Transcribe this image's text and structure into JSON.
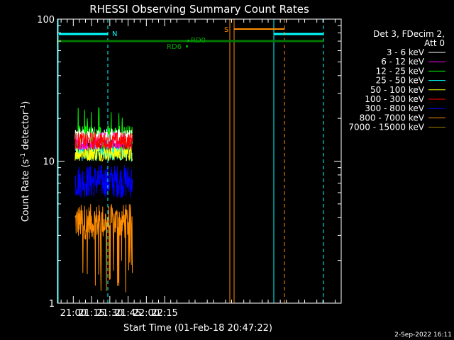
{
  "chart_data": {
    "type": "line",
    "title": "RHESSI Observing Summary Count Rates",
    "xlabel": "Start Time (01-Feb-18 20:47:22)",
    "ylabel_main": "Count Rate (s",
    "ylabel_sup1": "-1",
    "ylabel_mid": " detector",
    "ylabel_sup2": "-1",
    "ylabel_end": ")",
    "y_scale": "log",
    "ylim": [
      1,
      100
    ],
    "xlim_min": [
      1247,
      1480
    ],
    "xticks": [
      {
        "label": "21:00",
        "min": 1260
      },
      {
        "label": "21:15",
        "min": 1275
      },
      {
        "label": "21:30",
        "min": 1290
      },
      {
        "label": "21:45",
        "min": 1305
      },
      {
        "label": "22:00",
        "min": 1320
      },
      {
        "label": "22:15",
        "min": 1335
      }
    ],
    "yticks": [
      {
        "label": "100",
        "value": 100
      },
      {
        "label": "10",
        "value": 10
      },
      {
        "label": "1",
        "value": 1
      }
    ],
    "legend_header": [
      "Det 3, FDecim 2,",
      "Att 0"
    ],
    "series": [
      {
        "name": "3 - 6 keV",
        "color": "#ffffff",
        "range_min": [
          1261.5,
          1308.5
        ],
        "band": [
          13,
          17
        ]
      },
      {
        "name": "6 - 12 keV",
        "color": "#ff00ff",
        "range_min": [
          1261.5,
          1308.5
        ],
        "band": [
          12,
          16
        ]
      },
      {
        "name": "12 - 25 keV",
        "color": "#00ff00",
        "range_min": [
          1261.5,
          1308.5
        ],
        "band": [
          12,
          18
        ]
      },
      {
        "name": "25 - 50 keV",
        "color": "#00ffff",
        "range_min": [
          1261.5,
          1308.5
        ],
        "band": [
          10,
          13
        ]
      },
      {
        "name": "50 - 100 keV",
        "color": "#ffff00",
        "range_min": [
          1261.5,
          1308.5
        ],
        "band": [
          10,
          13
        ]
      },
      {
        "name": "100 - 300 keV",
        "color": "#ff0000",
        "range_min": [
          1261.5,
          1308.5
        ],
        "band": [
          12,
          16
        ]
      },
      {
        "name": "300 - 800 keV",
        "color": "#0000ff",
        "range_min": [
          1261.5,
          1308.5
        ],
        "band": [
          5.5,
          9.5
        ]
      },
      {
        "name": "800 - 7000 keV",
        "color": "#ff8c00",
        "range_min": [
          1261.5,
          1308.5
        ],
        "band": [
          2.8,
          5
        ]
      },
      {
        "name": "7000 - 15000 keV",
        "color": "#a08000",
        "range_min": [
          1261.5,
          1308.5
        ],
        "band": [
          0,
          0
        ]
      }
    ],
    "annotations": [
      {
        "label": "N",
        "color": "#00ffff"
      },
      {
        "label": "S",
        "color": "#ff8c00"
      },
      {
        "label": "RD0",
        "color": "#00aa00"
      },
      {
        "label": "RD6",
        "color": "#00aa00"
      }
    ],
    "footer_date": "2-Sep-2022 16:11"
  }
}
